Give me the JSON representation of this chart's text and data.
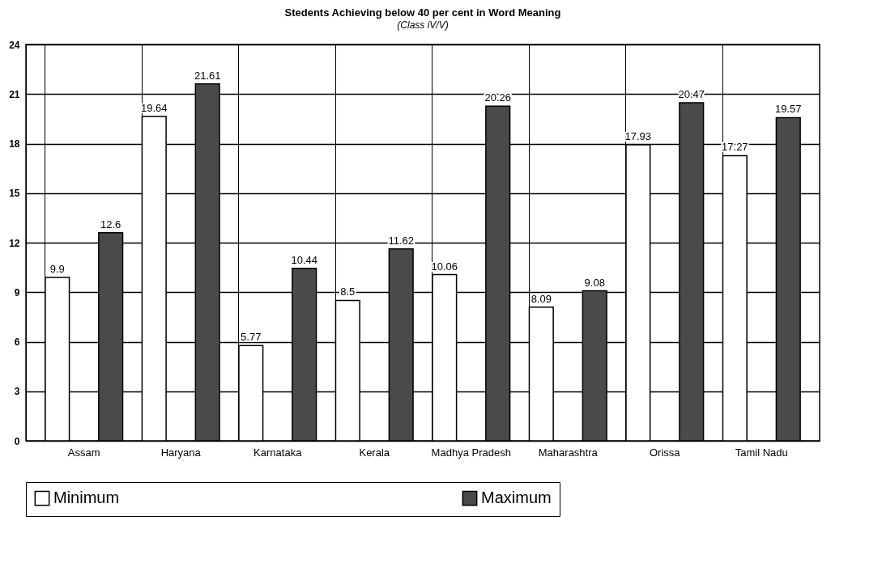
{
  "chart_data": {
    "type": "bar",
    "title": "Stedents Achieving below 40 per cent in Word Meaning",
    "subtitle": "(Class iV/V)",
    "categories": [
      "Assam",
      "Haryana",
      "Karnataka",
      "Kerala",
      "Madhya Pradesh",
      "Maharashtra",
      "Orissa",
      "Tamil Nadu"
    ],
    "series": [
      {
        "name": "Minimum",
        "color": "#ffffff",
        "values": [
          9.9,
          19.64,
          5.77,
          8.5,
          10.06,
          8.09,
          17.93,
          17.27
        ]
      },
      {
        "name": "Maximum",
        "color": "#4a4a4a",
        "values": [
          12.6,
          21.61,
          10.44,
          11.62,
          20.26,
          9.08,
          20.47,
          19.57
        ]
      }
    ],
    "ylim": [
      0,
      24
    ],
    "yticks": [
      0,
      3,
      6,
      9,
      12,
      15,
      18,
      21,
      24
    ],
    "grid": true,
    "legend": "bottom",
    "data_labels": true
  }
}
